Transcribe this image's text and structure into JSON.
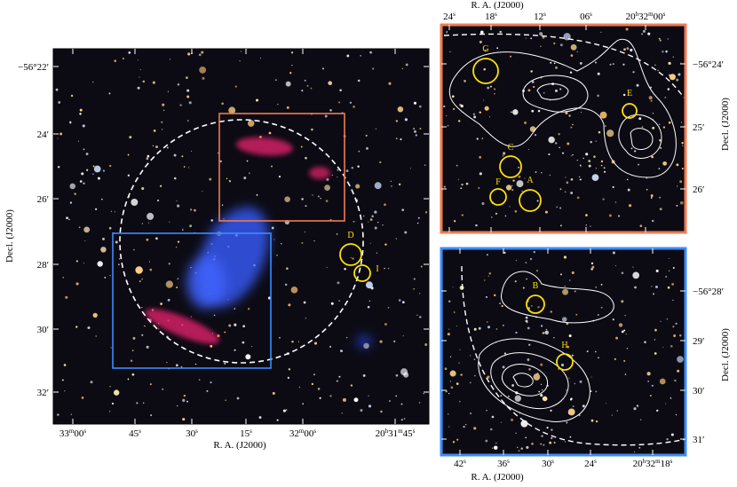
{
  "left_panel": {
    "x_axis_label": "R. A. (J2000)",
    "y_axis_label": "Decl. (J2000)",
    "x_ticks": [
      [
        "33",
        "m",
        "00",
        "s"
      ],
      [
        "45",
        "s"
      ],
      [
        "30",
        "s"
      ],
      [
        "15",
        "s"
      ],
      [
        "32",
        "m",
        "00",
        "s"
      ],
      [
        "20",
        "h",
        "31",
        "m",
        "45",
        "s"
      ]
    ],
    "y_ticks": [
      "−56°22′",
      "24′",
      "26′",
      "28′",
      "30′",
      "32′"
    ],
    "markers": [
      "D",
      "I"
    ]
  },
  "top_right_panel": {
    "x_axis_label": "R. A. (J2000)",
    "y_axis_label": "Decl. (J2000)",
    "x_ticks": [
      [
        "24",
        "s"
      ],
      [
        "18",
        "s"
      ],
      [
        "12",
        "s"
      ],
      [
        "06",
        "s"
      ],
      [
        "20",
        "h",
        "32",
        "m",
        "00",
        "s"
      ]
    ],
    "y_ticks": [
      "−56°24′",
      "25′",
      "26′"
    ],
    "markers": [
      "G",
      "E",
      "C",
      "F",
      "A"
    ]
  },
  "bottom_right_panel": {
    "x_axis_label": "R. A. (J2000)",
    "y_axis_label": "Decl. (J2000)",
    "x_ticks": [
      [
        "42",
        "s"
      ],
      [
        "36",
        "s"
      ],
      [
        "30",
        "s"
      ],
      [
        "24",
        "s"
      ],
      [
        "20",
        "h",
        "32",
        "m",
        "18",
        "s"
      ]
    ],
    "y_ticks": [
      "−56°28′",
      "29′",
      "30′",
      "31′"
    ],
    "markers": [
      "B",
      "H"
    ]
  }
}
